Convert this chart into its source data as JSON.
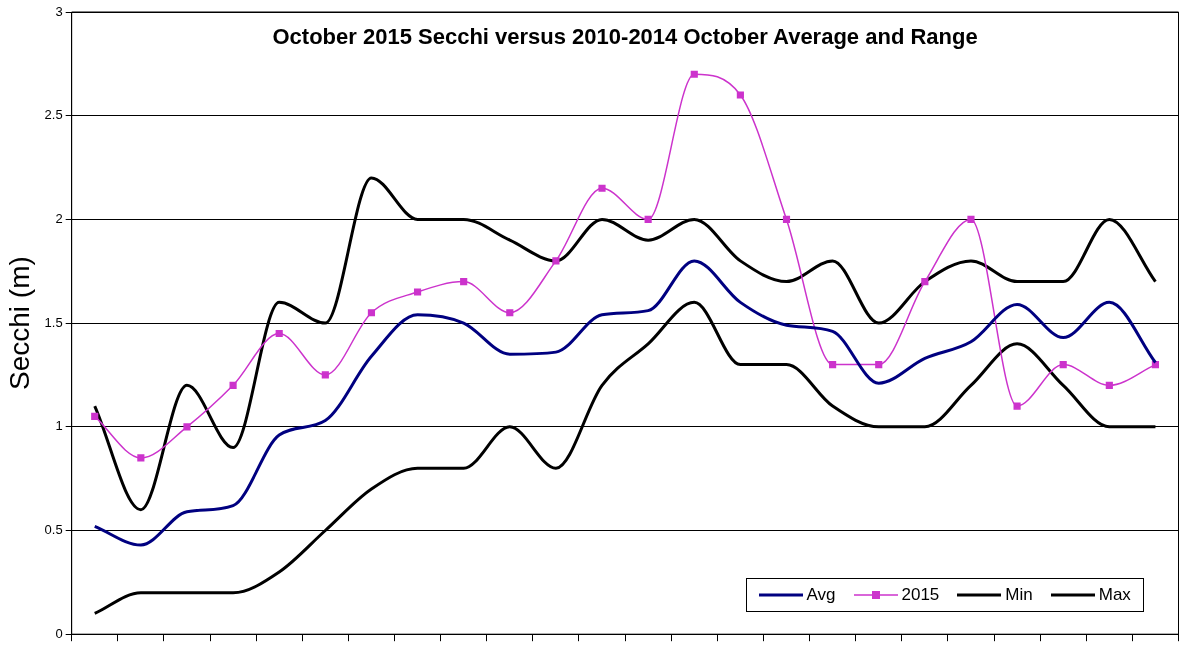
{
  "chart_data": {
    "type": "line",
    "title": "October 2015 Secchi versus 2010-2014 October Average and Range",
    "ylabel": "Secchi (m)",
    "categories": [
      null,
      null,
      null,
      null,
      null,
      null,
      null,
      null,
      null,
      null,
      null,
      null,
      null,
      null,
      null,
      null,
      null,
      null,
      null,
      null,
      null,
      null,
      null,
      null
    ],
    "series": [
      {
        "name": "Avg",
        "color": "#000080",
        "values": [
          0.52,
          0.43,
          0.59,
          0.62,
          0.96,
          1.03,
          1.34,
          1.54,
          1.5,
          1.35,
          1.36,
          1.54,
          1.56,
          1.8,
          1.6,
          1.49,
          1.46,
          1.21,
          1.33,
          1.41,
          1.59,
          1.43,
          1.6,
          1.31
        ]
      },
      {
        "name": "2015",
        "color": "#cc33cc",
        "marker": "square",
        "values": [
          1.05,
          0.85,
          1.0,
          1.2,
          1.45,
          1.25,
          1.55,
          1.65,
          1.7,
          1.55,
          1.8,
          2.15,
          2.0,
          2.7,
          2.6,
          2.0,
          1.3,
          1.3,
          1.7,
          2.0,
          1.1,
          1.3,
          1.2,
          1.3
        ]
      },
      {
        "name": "Min",
        "color": "#000000",
        "values": [
          0.1,
          0.2,
          0.2,
          0.2,
          0.3,
          0.5,
          0.7,
          0.8,
          0.8,
          1.0,
          0.8,
          1.2,
          1.4,
          1.6,
          1.3,
          1.3,
          1.1,
          1.0,
          1.0,
          1.2,
          1.4,
          1.2,
          1.0,
          1.0
        ]
      },
      {
        "name": "Max",
        "color": "#000000",
        "values": [
          1.1,
          0.6,
          1.2,
          0.9,
          1.6,
          1.5,
          2.2,
          2.0,
          2.0,
          1.9,
          1.8,
          2.0,
          1.9,
          2.0,
          1.8,
          1.7,
          1.8,
          1.5,
          1.7,
          1.8,
          1.7,
          1.7,
          2.0,
          1.7
        ]
      }
    ],
    "ylim": [
      0,
      3
    ],
    "yticks": [
      0,
      0.5,
      1,
      1.5,
      2,
      2.5,
      3
    ],
    "grid": "y",
    "legend": "bottom right",
    "tick_labels": "y"
  }
}
